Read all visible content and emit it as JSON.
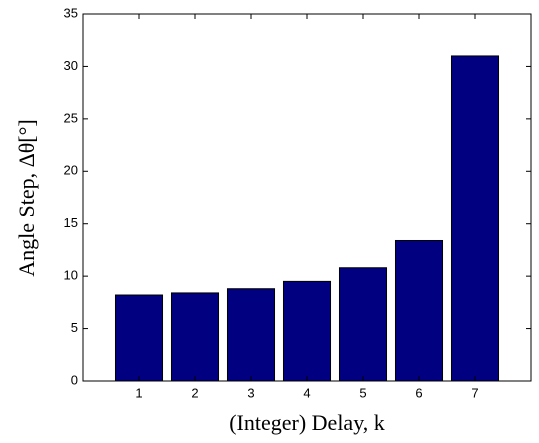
{
  "chart_data": {
    "type": "bar",
    "x": [
      1,
      2,
      3,
      4,
      5,
      6,
      7
    ],
    "values": [
      8.2,
      8.4,
      8.8,
      9.5,
      10.8,
      13.4,
      31.0
    ],
    "color": "#000080",
    "xlabel": "(Integer) Delay, k",
    "ylabel": "Angle Step, Δθ[°]",
    "xlim": [
      0,
      8
    ],
    "xticks": [
      1,
      2,
      3,
      4,
      5,
      6,
      7
    ],
    "ylim": [
      0,
      35
    ],
    "yticks": [
      0,
      5,
      10,
      15,
      20,
      25,
      30,
      35
    ],
    "grid": false
  }
}
